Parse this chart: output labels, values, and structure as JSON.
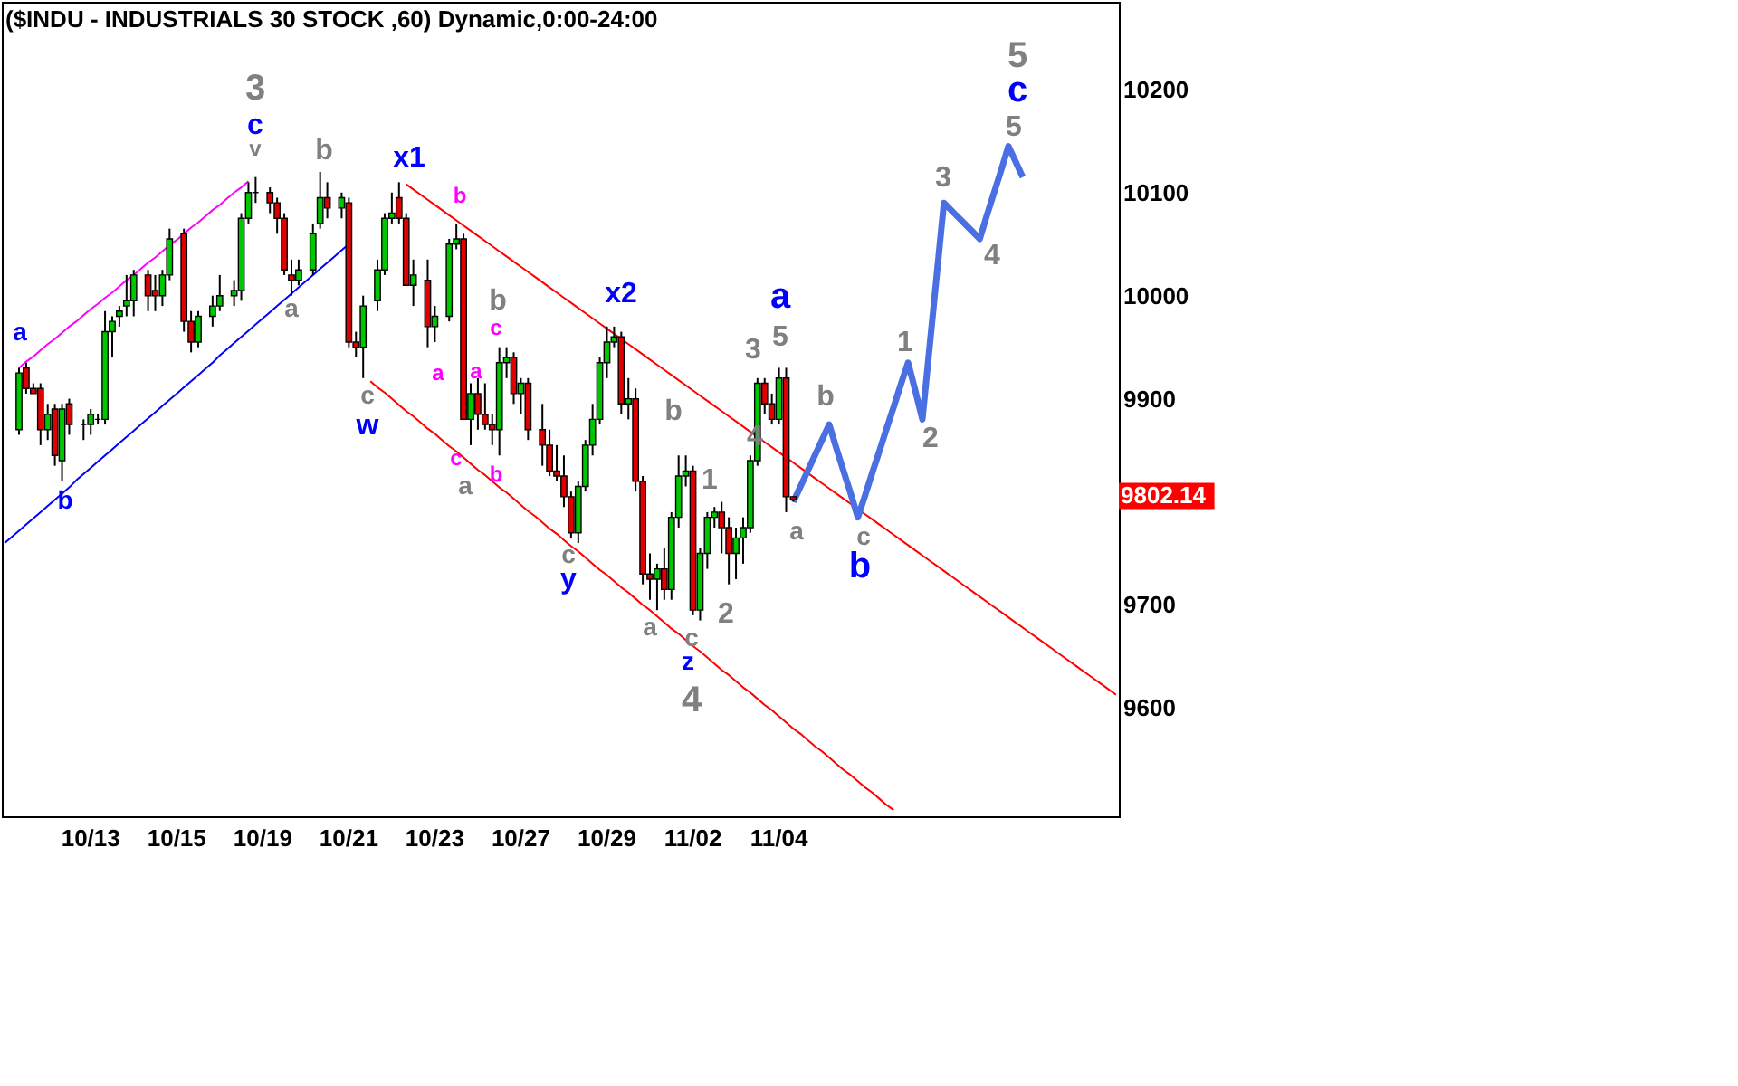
{
  "chart_data": {
    "type": "candlestick",
    "title": "($INDU - INDUSTRIALS 30 STOCK ,60) Dynamic,0:00-24:00",
    "categories": [
      null,
      null,
      null,
      null,
      null,
      null,
      null,
      null,
      null,
      null,
      null,
      null,
      "10/13",
      null,
      null,
      null,
      null,
      null,
      null,
      null,
      null,
      null,
      null,
      null,
      "10/15",
      null,
      null,
      null,
      null,
      null,
      null,
      null,
      null,
      null,
      null,
      null,
      "10/19",
      null,
      null,
      null,
      null,
      null,
      null,
      null,
      null,
      null,
      null,
      null,
      "10/21",
      null,
      null,
      null,
      null,
      null,
      null,
      null,
      null,
      null,
      null,
      null,
      "10/23",
      null,
      null,
      null,
      null,
      null,
      null,
      null,
      null,
      null,
      null,
      null,
      "10/27",
      null,
      null,
      null,
      null,
      null,
      null,
      null,
      null,
      null,
      null,
      null,
      "10/29",
      null,
      null,
      null,
      null,
      null,
      null,
      null,
      null,
      null,
      null,
      null,
      "11/02",
      null,
      null,
      null,
      null,
      null,
      null,
      null,
      null,
      null,
      null,
      null,
      "11/04",
      null,
      null,
      null,
      null,
      null,
      null,
      null,
      null,
      null,
      null,
      null,
      null,
      null,
      null,
      null,
      null,
      null,
      null,
      null,
      null,
      null,
      null,
      null,
      null,
      null,
      null,
      null,
      null,
      null,
      null,
      null,
      null,
      null,
      null,
      null,
      null,
      null,
      null,
      null,
      null,
      null,
      null,
      null,
      null,
      null,
      null,
      null
    ],
    "ohlc": [
      null,
      null,
      [
        9870,
        9930,
        9865,
        9925
      ],
      [
        9930,
        9935,
        9905,
        9910
      ],
      [
        9910,
        9915,
        9905,
        9905
      ],
      [
        9910,
        9915,
        9855,
        9870
      ],
      [
        9870,
        9895,
        9860,
        9885
      ],
      [
        9890,
        9895,
        9835,
        9845
      ],
      [
        9840,
        9895,
        9820,
        9890
      ],
      [
        9895,
        9900,
        9865,
        9875
      ],
      null,
      [
        9875,
        9880,
        9860,
        9875
      ],
      [
        9875,
        9890,
        9865,
        9885
      ],
      [
        9880,
        9885,
        9875,
        9880
      ],
      [
        9880,
        9985,
        9875,
        9965
      ],
      [
        9965,
        9980,
        9940,
        9975
      ],
      [
        9980,
        9990,
        9970,
        9985
      ],
      [
        9990,
        10020,
        9980,
        9995
      ],
      [
        9995,
        10025,
        9980,
        10020
      ],
      null,
      [
        10020,
        10025,
        9985,
        10000
      ],
      [
        10005,
        10020,
        9985,
        10000
      ],
      [
        10000,
        10025,
        9990,
        10020
      ],
      [
        10020,
        10065,
        10015,
        10055
      ],
      null,
      [
        10060,
        10065,
        9965,
        9975
      ],
      [
        9975,
        9985,
        9945,
        9955
      ],
      [
        9955,
        9985,
        9950,
        9980
      ],
      null,
      [
        9980,
        10000,
        9970,
        9990
      ],
      [
        9990,
        10020,
        9985,
        10000
      ],
      null,
      [
        10000,
        10015,
        9990,
        10005
      ],
      [
        10005,
        10080,
        9995,
        10075
      ],
      [
        10075,
        10110,
        10070,
        10100
      ],
      [
        10100,
        10115,
        10090,
        10100
      ],
      null,
      [
        10100,
        10105,
        10080,
        10090
      ],
      [
        10090,
        10095,
        10060,
        10075
      ],
      [
        10075,
        10080,
        10020,
        10025
      ],
      [
        10020,
        10035,
        10000,
        10015
      ],
      [
        10015,
        10035,
        10010,
        10025
      ],
      null,
      [
        10025,
        10070,
        10020,
        10060
      ],
      [
        10070,
        10120,
        10065,
        10095
      ],
      [
        10095,
        10110,
        10075,
        10085
      ],
      null,
      [
        10085,
        10100,
        10075,
        10095
      ],
      [
        10090,
        10095,
        9950,
        9955
      ],
      [
        9955,
        9965,
        9940,
        9950
      ],
      [
        9950,
        10000,
        9920,
        9990
      ],
      null,
      [
        9995,
        10035,
        9985,
        10025
      ],
      [
        10025,
        10080,
        10020,
        10075
      ],
      [
        10075,
        10100,
        10070,
        10080
      ],
      [
        10095,
        10110,
        10070,
        10075
      ],
      [
        10075,
        10080,
        10010,
        10010
      ],
      [
        10010,
        10035,
        9990,
        10020
      ],
      null,
      [
        10015,
        10035,
        9950,
        9970
      ],
      [
        9970,
        9990,
        9955,
        9980
      ],
      null,
      [
        9980,
        10055,
        9975,
        10050
      ],
      [
        10050,
        10070,
        10045,
        10055
      ],
      [
        10055,
        10060,
        9880,
        9880
      ],
      [
        9880,
        9915,
        9855,
        9905
      ],
      [
        9905,
        9920,
        9870,
        9885
      ],
      [
        9885,
        9915,
        9870,
        9875
      ],
      [
        9875,
        9885,
        9855,
        9870
      ],
      [
        9870,
        9950,
        9845,
        9935
      ],
      [
        9935,
        9950,
        9920,
        9940
      ],
      [
        9940,
        9945,
        9895,
        9905
      ],
      [
        9905,
        9920,
        9885,
        9915
      ],
      [
        9915,
        9920,
        9860,
        9870
      ],
      null,
      [
        9870,
        9895,
        9835,
        9855
      ],
      [
        9855,
        9870,
        9825,
        9830
      ],
      [
        9830,
        9855,
        9820,
        9825
      ],
      [
        9825,
        9845,
        9795,
        9805
      ],
      [
        9805,
        9810,
        9765,
        9770
      ],
      [
        9770,
        9820,
        9760,
        9815
      ],
      [
        9815,
        9860,
        9810,
        9855
      ],
      [
        9855,
        9895,
        9845,
        9880
      ],
      [
        9880,
        9940,
        9875,
        9935
      ],
      [
        9935,
        9970,
        9920,
        9955
      ],
      [
        9955,
        9970,
        9950,
        9960
      ],
      [
        9960,
        9965,
        9885,
        9895
      ],
      [
        9895,
        9920,
        9880,
        9900
      ],
      [
        9900,
        9910,
        9810,
        9820
      ],
      [
        9820,
        9825,
        9720,
        9730
      ],
      [
        9730,
        9750,
        9705,
        9725
      ],
      [
        9725,
        9740,
        9695,
        9735
      ],
      [
        9735,
        9755,
        9705,
        9715
      ],
      [
        9715,
        9790,
        9705,
        9785
      ],
      [
        9785,
        9845,
        9775,
        9825
      ],
      [
        9825,
        9845,
        9815,
        9830
      ],
      [
        9830,
        9835,
        9690,
        9695
      ],
      [
        9695,
        9755,
        9685,
        9750
      ],
      [
        9750,
        9790,
        9735,
        9785
      ],
      [
        9785,
        9795,
        9775,
        9790
      ],
      [
        9790,
        9800,
        9750,
        9775
      ],
      [
        9775,
        9785,
        9720,
        9750
      ],
      [
        9750,
        9775,
        9725,
        9765
      ],
      [
        9765,
        9785,
        9740,
        9775
      ],
      [
        9775,
        9845,
        9770,
        9840
      ],
      [
        9840,
        9920,
        9835,
        9915
      ],
      [
        9915,
        9920,
        9885,
        9895
      ],
      [
        9895,
        9905,
        9875,
        9880
      ],
      [
        9880,
        9930,
        9875,
        9920
      ],
      [
        9920,
        9930,
        9790,
        9805
      ],
      [
        9805,
        9805,
        9800,
        9802.14
      ],
      null,
      null,
      null,
      null,
      null,
      null,
      null,
      null,
      null,
      null,
      null,
      null,
      null,
      null,
      null,
      null,
      null,
      null,
      null,
      null,
      null,
      null,
      null,
      null,
      null,
      null,
      null,
      null,
      null,
      null,
      null,
      null,
      null,
      null,
      null,
      null,
      null,
      null,
      null,
      null,
      null,
      null,
      null,
      null,
      null
    ],
    "series": [
      {
        "type": "line",
        "color": "#ff00ff",
        "values": [
          null,
          null,
          9930,
          9936,
          9941,
          9947,
          9953,
          9958,
          9964,
          9970,
          9975,
          9981,
          9987,
          9992,
          9998,
          10003,
          10009,
          10015,
          10020,
          10026,
          10032,
          10037,
          10043,
          10049,
          10054,
          10060,
          10066,
          10071,
          10077,
          10083,
          10088,
          10094,
          10100,
          10105,
          10111,
          null,
          null,
          null,
          null,
          null,
          null,
          null,
          null,
          null,
          null,
          null,
          null,
          null,
          null,
          null,
          null,
          null,
          null,
          null,
          null,
          null,
          null,
          null,
          null,
          null,
          null,
          null,
          null,
          null,
          null,
          null,
          null,
          null,
          null,
          null,
          null,
          null,
          null,
          null,
          null,
          null,
          null,
          null,
          null,
          null,
          null,
          null,
          null,
          null,
          null,
          null,
          null,
          null,
          null,
          null,
          null,
          null,
          null,
          null,
          null,
          null,
          null,
          null,
          null,
          null,
          null,
          null,
          null,
          null,
          null,
          null,
          null,
          null,
          null,
          null,
          null,
          null,
          null,
          null,
          null,
          null,
          null,
          null,
          null,
          null,
          null,
          null,
          null,
          null,
          null,
          null,
          null,
          null,
          null,
          null,
          null,
          null,
          null,
          null,
          null,
          null,
          null,
          null,
          null,
          null,
          null,
          null,
          null,
          null,
          null,
          null,
          null,
          null,
          null,
          null,
          null,
          null,
          null,
          null,
          null,
          null
        ]
      },
      {
        "type": "line",
        "color": "#0000ff",
        "values": [
          9760,
          9766,
          9772,
          9778,
          9784,
          9790,
          9796,
          9802,
          9808,
          9814,
          9821,
          9827,
          9833,
          9839,
          9845,
          9851,
          9857,
          9863,
          9869,
          9875,
          9881,
          9887,
          9893,
          9899,
          9905,
          9911,
          9917,
          9923,
          9929,
          9935,
          9942,
          9948,
          9954,
          9960,
          9966,
          9972,
          9978,
          9984,
          9990,
          9996,
          10002,
          10008,
          10014,
          10020,
          10026,
          10032,
          10038,
          10044,
          10050,
          null,
          null,
          null,
          null,
          null,
          null,
          null,
          null,
          null,
          null,
          null,
          null,
          null,
          null,
          null,
          null,
          null,
          null,
          null,
          null,
          null,
          null,
          null,
          null,
          null,
          null,
          null,
          null,
          null,
          null,
          null,
          null,
          null,
          null,
          null,
          null,
          null,
          null,
          null,
          null,
          null,
          null,
          null,
          null,
          null,
          null,
          null,
          null,
          null,
          null,
          null,
          null,
          null,
          null,
          null,
          null,
          null,
          null,
          null,
          null,
          null,
          null,
          null,
          null,
          null,
          null,
          null,
          null,
          null,
          null,
          null,
          null,
          null,
          null,
          null,
          null,
          null,
          null,
          null,
          null,
          null,
          null,
          null,
          null,
          null,
          null,
          null,
          null,
          null,
          null,
          null,
          null,
          null,
          null,
          null,
          null,
          null,
          null,
          null,
          null,
          null,
          null,
          null,
          null,
          null,
          null,
          null
        ]
      },
      {
        "type": "line",
        "color": "#ff0000",
        "values": [
          null,
          null,
          null,
          null,
          null,
          null,
          null,
          null,
          null,
          null,
          null,
          null,
          null,
          null,
          null,
          null,
          null,
          null,
          null,
          null,
          null,
          null,
          null,
          null,
          null,
          null,
          null,
          null,
          null,
          null,
          null,
          null,
          null,
          null,
          null,
          null,
          null,
          null,
          null,
          null,
          null,
          null,
          null,
          null,
          null,
          null,
          null,
          null,
          null,
          null,
          null,
          null,
          null,
          null,
          null,
          null,
          10108,
          10103,
          10098,
          10093,
          10088,
          10083,
          10078,
          10073,
          10068,
          10063,
          10058,
          10053,
          10048,
          10043,
          10038,
          10033,
          10028,
          10023,
          10018,
          10013,
          10008,
          10003,
          9998,
          9993,
          9988,
          9983,
          9978,
          9973,
          9968,
          9963,
          9958,
          9953,
          9948,
          9943,
          9938,
          9933,
          9928,
          9923,
          9918,
          9913,
          9908,
          9903,
          9898,
          9893,
          9888,
          9883,
          9878,
          9873,
          9868,
          9863,
          9858,
          9853,
          9848,
          9843,
          9838,
          9833,
          9828,
          9823,
          9818,
          9813,
          9808,
          9803,
          9798,
          9793,
          9788,
          9783,
          9778,
          9773,
          9768,
          9763,
          9758,
          9753,
          9748,
          9743,
          9738,
          9733,
          9728,
          9723,
          9718,
          9713,
          9708,
          9703,
          9698,
          9693,
          9688,
          9683,
          9678,
          9673,
          9668,
          9663,
          9658,
          9653,
          9648,
          9643,
          9638,
          9633,
          9628,
          9623,
          9618,
          9613
        ]
      },
      {
        "type": "line",
        "color": "#ff0000",
        "values": [
          null,
          null,
          null,
          null,
          null,
          null,
          null,
          null,
          null,
          null,
          null,
          null,
          null,
          null,
          null,
          null,
          null,
          null,
          null,
          null,
          null,
          null,
          null,
          null,
          null,
          null,
          null,
          null,
          null,
          null,
          null,
          null,
          null,
          null,
          null,
          null,
          null,
          null,
          null,
          null,
          null,
          null,
          null,
          null,
          null,
          null,
          null,
          null,
          null,
          null,
          null,
          9917,
          9911,
          9906,
          9900,
          9894,
          9888,
          9883,
          9877,
          9871,
          9866,
          9860,
          9854,
          9849,
          9843,
          9837,
          9831,
          9826,
          9820,
          9814,
          9809,
          9803,
          9797,
          9791,
          9786,
          9780,
          9774,
          9769,
          9763,
          9757,
          9752,
          9746,
          9740,
          9734,
          9729,
          9723,
          9717,
          9712,
          9706,
          9700,
          9695,
          9689,
          9683,
          9677,
          9672,
          9666,
          9660,
          9655,
          9649,
          9643,
          9637,
          9632,
          9626,
          9620,
          9615,
          9609,
          9603,
          9598,
          9592,
          9586,
          9580,
          9575,
          9569,
          9563,
          9558,
          9552,
          9546,
          9540,
          9535,
          9529,
          9523,
          9518,
          9512,
          9506,
          9501,
          null,
          null,
          null,
          null,
          null,
          null,
          null,
          null,
          null,
          null,
          null,
          null,
          null,
          null,
          null,
          null,
          null,
          null,
          null,
          null,
          null,
          null,
          null,
          null,
          null,
          null,
          null,
          null,
          null,
          null,
          null
        ]
      },
      {
        "type": "line",
        "color": "#4a6fe3",
        "values": [
          null,
          null,
          null,
          null,
          null,
          null,
          null,
          null,
          null,
          null,
          null,
          null,
          null,
          null,
          null,
          null,
          null,
          null,
          null,
          null,
          null,
          null,
          null,
          null,
          null,
          null,
          null,
          null,
          null,
          null,
          null,
          null,
          null,
          null,
          null,
          null,
          null,
          null,
          null,
          null,
          null,
          null,
          null,
          null,
          null,
          null,
          null,
          null,
          null,
          null,
          null,
          null,
          null,
          null,
          null,
          null,
          null,
          null,
          null,
          null,
          null,
          null,
          null,
          null,
          null,
          null,
          null,
          null,
          null,
          null,
          null,
          null,
          null,
          null,
          null,
          null,
          null,
          null,
          null,
          null,
          null,
          null,
          null,
          null,
          null,
          null,
          null,
          null,
          null,
          null,
          null,
          null,
          null,
          null,
          null,
          null,
          null,
          null,
          null,
          null,
          null,
          null,
          null,
          null,
          null,
          null,
          null,
          null,
          null,
          null,
          9800,
          9815,
          9830,
          9845,
          9860,
          9875,
          9852,
          9830,
          9808,
          9785,
          9806,
          9828,
          9849,
          9871,
          9892,
          9914,
          9935,
          9908,
          9880,
          9950,
          10020,
          10090,
          10083,
          10076,
          10069,
          10062,
          10055,
          10078,
          10100,
          10122,
          10145,
          10130,
          10115,
          null,
          null,
          null,
          null,
          null,
          null,
          null,
          null,
          null,
          null,
          null,
          null,
          null
        ]
      }
    ],
    "annotations": [
      "3",
      "c",
      "v",
      "a",
      "b",
      "b",
      "a",
      "c",
      "w",
      "x1",
      "b",
      "a",
      "a",
      "b",
      "c",
      "c",
      "b",
      "a",
      "c",
      "y",
      "x2",
      "b",
      "1",
      "a",
      "c",
      "z",
      "4",
      "2",
      "3",
      "a",
      "5",
      "4",
      "a",
      "b",
      "c",
      "b",
      "1",
      "2",
      "3",
      "4",
      "5",
      "c",
      "5",
      "9802.14"
    ],
    "ylim": [
      9495,
      10285
    ],
    "yticks": [
      9600,
      9700,
      9900,
      10000,
      10100,
      10200
    ],
    "grid": false
  }
}
